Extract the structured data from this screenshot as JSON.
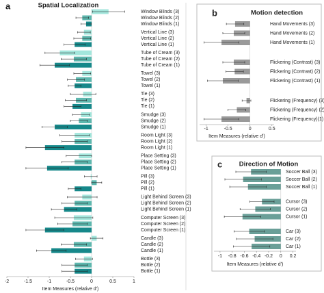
{
  "chart_data": [
    {
      "type": "hbar",
      "panel": "a",
      "title": "Spatial Localization",
      "x_label": "Item Measures (relative d')",
      "xlim": [
        -2,
        1
      ],
      "xticks": [
        -2,
        -1.5,
        -1,
        -0.5,
        0,
        0.5,
        1
      ],
      "colors": [
        "#a3e6dc",
        "#5db7ae",
        "#16888a"
      ],
      "groups": [
        {
          "categories": [
            "Window Blinds (3)",
            "Window Blinds (2)",
            "Window Blinds (1)"
          ],
          "values": [
            0.4,
            -0.22,
            -0.13
          ],
          "errors": [
            0.38,
            0.15,
            0.12
          ]
        },
        {
          "categories": [
            "Vertical Line (3)",
            "Vertical Line (2)",
            "Vertical Line (1)"
          ],
          "values": [
            -0.18,
            -0.22,
            -0.4
          ],
          "errors": [
            0.15,
            0.2,
            0.25
          ]
        },
        {
          "categories": [
            "Tube of Cream (3)",
            "Tube of Cream (2)",
            "Tube of Cream (1)"
          ],
          "values": [
            -0.75,
            -0.42,
            -0.87
          ],
          "errors": [
            0.35,
            0.3,
            0.35
          ]
        },
        {
          "categories": [
            "Towel (3)",
            "Towel (2)",
            "Towel (1)"
          ],
          "values": [
            -0.22,
            -0.37,
            -0.4
          ],
          "errors": [
            0.2,
            0.2,
            0.15
          ]
        },
        {
          "categories": [
            "Tie (3)",
            "Tie (2)",
            "Tie (1)"
          ],
          "values": [
            -0.2,
            -0.37,
            -0.45
          ],
          "errors": [
            0.3,
            0.25,
            0.2
          ]
        },
        {
          "categories": [
            "Smudge (3)",
            "Smudge (2)",
            "Smudge (1)"
          ],
          "values": [
            -0.25,
            -0.3,
            -0.87
          ],
          "errors": [
            0.2,
            0.2,
            0.3
          ]
        },
        {
          "categories": [
            "Room Light (3)",
            "Room Light (2)",
            "Room Light (1)"
          ],
          "values": [
            -0.4,
            -0.4,
            -1.1
          ],
          "errors": [
            0.35,
            0.3,
            0.45
          ]
        },
        {
          "categories": [
            "Place Setting (3)",
            "Place Setting (2)",
            "Place Setting (1)"
          ],
          "values": [
            -0.3,
            -0.4,
            -1.05
          ],
          "errors": [
            0.3,
            0.3,
            0.5
          ]
        },
        {
          "categories": [
            "Pill (3)",
            "Pill (2)",
            "Pill (1)"
          ],
          "values": [
            -0.02,
            0.12,
            -0.4
          ],
          "errors": [
            0.15,
            0.12,
            0.15
          ]
        },
        {
          "categories": [
            "Light Behind Screen (3)",
            "Light Behind Screen (2)",
            "Light Behind Screen (1)"
          ],
          "values": [
            -0.22,
            -0.4,
            -0.65
          ],
          "errors": [
            0.35,
            0.3,
            0.3
          ]
        },
        {
          "categories": [
            "Computer Screen (3)",
            "Computer Screen (2)",
            "Computer Screen (1)"
          ],
          "values": [
            -0.42,
            -0.45,
            -1.1
          ],
          "errors": [
            0.45,
            0.35,
            0.45
          ]
        },
        {
          "categories": [
            "Candle (3)",
            "Candle (2)",
            "Candle (1)"
          ],
          "values": [
            0.12,
            -0.42,
            -0.95
          ],
          "errors": [
            0.15,
            0.3,
            0.35
          ]
        },
        {
          "categories": [
            "Bottle (3)",
            "Bottle (2)",
            "Bottle (1)"
          ],
          "values": [
            -0.18,
            -0.4,
            -0.4
          ],
          "errors": [
            0.2,
            0.3,
            0.3
          ]
        }
      ]
    },
    {
      "type": "hbar",
      "panel": "b",
      "title": "Motion detection",
      "x_label": "Item Measures (relative d')",
      "xlim": [
        -1.15,
        0.55
      ],
      "xticks": [
        -1,
        -0.5,
        0,
        0.5
      ],
      "colors": [
        "#9a9a9a"
      ],
      "groups": [
        {
          "categories": [
            "Hand Movements (3)",
            "Hand Movements (2)",
            "Hand Movements (1)"
          ],
          "values": [
            -0.34,
            -0.37,
            -0.65
          ],
          "errors": [
            0.2,
            0.25,
            0.4
          ]
        },
        {
          "categories": [
            "Flickering (Contrast) (3)",
            "Flickering (Contrast) (2)",
            "Flickering (Contrast) (1)"
          ],
          "values": [
            -0.37,
            -0.35,
            -0.62
          ],
          "errors": [
            0.25,
            0.2,
            0.35
          ]
        },
        {
          "categories": [
            "Flickering (Frequency) (3)",
            "Flickering (Frequency) (2)",
            "Flickering (Frequency)(1)"
          ],
          "values": [
            -0.08,
            -0.3,
            -0.65
          ],
          "errors": [
            0.1,
            0.2,
            0.4
          ]
        }
      ]
    },
    {
      "type": "hbar",
      "panel": "c",
      "title": "Direction of Motion",
      "x_label": "Item Measures (relative d')",
      "xlim": [
        -1.1,
        0.25
      ],
      "xticks": [
        -1,
        -0.8,
        -0.6,
        -0.4,
        -0.2,
        0,
        0.2
      ],
      "colors": [
        "#6a9f98"
      ],
      "groups": [
        {
          "categories": [
            "Soccer Ball (3)",
            "Soccer Ball (2)",
            "Soccer Ball (1)"
          ],
          "values": [
            -0.49,
            -0.62,
            -0.54
          ],
          "errors": [
            0.25,
            0.3,
            0.3
          ]
        },
        {
          "categories": [
            "Cursor (3)",
            "Cursor (2)",
            "Cursor (1)"
          ],
          "values": [
            -0.31,
            -0.42,
            -0.63
          ],
          "errors": [
            0.2,
            0.25,
            0.3
          ]
        },
        {
          "categories": [
            "Car (3)",
            "Car (2)",
            "Car (1)"
          ],
          "values": [
            -0.52,
            -0.43,
            -0.48
          ],
          "errors": [
            0.25,
            0.3,
            0.3
          ]
        }
      ]
    }
  ]
}
